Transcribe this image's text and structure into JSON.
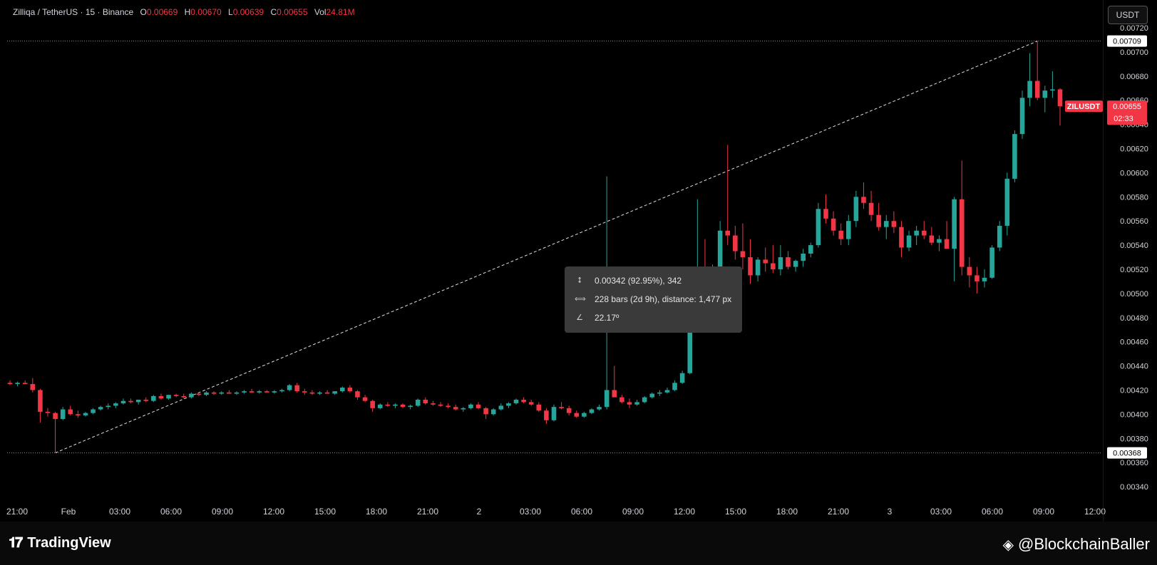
{
  "header": {
    "symbol": "Zilliqa / TetherUS · 15 · Binance",
    "o_label": "O",
    "o_value": "0.00669",
    "h_label": "H",
    "h_value": "0.00670",
    "l_label": "L",
    "l_value": "0.00639",
    "c_label": "C",
    "c_value": "0.00655",
    "vol_label": "Vol",
    "vol_value": "24.81M"
  },
  "currency_button": "USDT",
  "price_badge": {
    "symbol": "ZILUSDT",
    "price": "0.00655",
    "countdown": "02:33"
  },
  "high_marker": "0.00709",
  "low_marker": "0.00368",
  "measure_tooltip": {
    "price_change": "0.00342 (92.95%), 342",
    "bars": "228 bars (2d 9h), distance: 1,477 px",
    "angle": "22.17º"
  },
  "footer": {
    "brand": "TradingView",
    "credit": "@BlockchainBaller"
  },
  "colors": {
    "up": "#26a69a",
    "down": "#f23645",
    "background": "#000000",
    "grid_text": "#d1d4dc"
  },
  "chart_data": {
    "type": "candlestick",
    "title": "Zilliqa / TetherUS · 15 · Binance",
    "y_axis": {
      "ticks": [
        "0.00720",
        "0.00700",
        "0.00680",
        "0.00660",
        "0.00640",
        "0.00620",
        "0.00600",
        "0.00580",
        "0.00560",
        "0.00540",
        "0.00520",
        "0.00500",
        "0.00480",
        "0.00460",
        "0.00440",
        "0.00420",
        "0.00400",
        "0.00380",
        "0.00360",
        "0.00340"
      ],
      "range": [
        0.0033,
        0.00743
      ]
    },
    "x_axis": {
      "ticks": [
        "21:00",
        "Feb",
        "03:00",
        "06:00",
        "09:00",
        "12:00",
        "15:00",
        "18:00",
        "21:00",
        "2",
        "03:00",
        "06:00",
        "09:00",
        "12:00",
        "15:00",
        "18:00",
        "21:00",
        "3",
        "03:00",
        "06:00",
        "09:00",
        "12:00"
      ]
    },
    "candles": [
      [
        0.00426,
        0.00428,
        0.00424,
        0.00425
      ],
      [
        0.00425,
        0.00427,
        0.00423,
        0.00426
      ],
      [
        0.00426,
        0.00428,
        0.00425,
        0.00425
      ],
      [
        0.00425,
        0.0043,
        0.00418,
        0.0042
      ],
      [
        0.0042,
        0.00421,
        0.00393,
        0.00402
      ],
      [
        0.00402,
        0.00405,
        0.00398,
        0.00401
      ],
      [
        0.00401,
        0.00402,
        0.00368,
        0.00396
      ],
      [
        0.00396,
        0.00406,
        0.00395,
        0.00404
      ],
      [
        0.00404,
        0.00407,
        0.00399,
        0.004
      ],
      [
        0.004,
        0.00403,
        0.00397,
        0.00399
      ],
      [
        0.00399,
        0.00402,
        0.00398,
        0.00401
      ],
      [
        0.00401,
        0.00405,
        0.004,
        0.00404
      ],
      [
        0.00404,
        0.00407,
        0.00403,
        0.00406
      ],
      [
        0.00406,
        0.00409,
        0.00404,
        0.00407
      ],
      [
        0.00407,
        0.0041,
        0.00405,
        0.00409
      ],
      [
        0.00409,
        0.00413,
        0.00408,
        0.00411
      ],
      [
        0.00411,
        0.00413,
        0.00409,
        0.0041
      ],
      [
        0.0041,
        0.00412,
        0.00408,
        0.00412
      ],
      [
        0.00412,
        0.00414,
        0.0041,
        0.00411
      ],
      [
        0.00411,
        0.00416,
        0.0041,
        0.00415
      ],
      [
        0.00415,
        0.00417,
        0.00412,
        0.00413
      ],
      [
        0.00413,
        0.00416,
        0.00412,
        0.00416
      ],
      [
        0.00416,
        0.00417,
        0.00414,
        0.00415
      ],
      [
        0.00415,
        0.00417,
        0.00413,
        0.00414
      ],
      [
        0.00414,
        0.00418,
        0.00413,
        0.00417
      ],
      [
        0.00417,
        0.00418,
        0.00415,
        0.00416
      ],
      [
        0.00416,
        0.00419,
        0.00415,
        0.00418
      ],
      [
        0.00418,
        0.00419,
        0.00416,
        0.00417
      ],
      [
        0.00417,
        0.00419,
        0.00416,
        0.00418
      ],
      [
        0.00418,
        0.0042,
        0.00417,
        0.00417
      ],
      [
        0.00417,
        0.00419,
        0.00416,
        0.00418
      ],
      [
        0.00418,
        0.0042,
        0.00417,
        0.00419
      ],
      [
        0.00419,
        0.00421,
        0.00418,
        0.00418
      ],
      [
        0.00418,
        0.0042,
        0.00417,
        0.00419
      ],
      [
        0.00419,
        0.0042,
        0.00418,
        0.00418
      ],
      [
        0.00418,
        0.0042,
        0.00417,
        0.00419
      ],
      [
        0.00419,
        0.00421,
        0.00418,
        0.0042
      ],
      [
        0.0042,
        0.00425,
        0.00419,
        0.00424
      ],
      [
        0.00424,
        0.00426,
        0.00418,
        0.00419
      ],
      [
        0.00419,
        0.00421,
        0.00416,
        0.00418
      ],
      [
        0.00418,
        0.0042,
        0.00416,
        0.00417
      ],
      [
        0.00417,
        0.00419,
        0.00416,
        0.00418
      ],
      [
        0.00418,
        0.0042,
        0.00417,
        0.00417
      ],
      [
        0.00417,
        0.00419,
        0.00416,
        0.00419
      ],
      [
        0.00419,
        0.00423,
        0.00418,
        0.00422
      ],
      [
        0.00422,
        0.00424,
        0.00418,
        0.00419
      ],
      [
        0.00419,
        0.0042,
        0.00412,
        0.00414
      ],
      [
        0.00414,
        0.00416,
        0.0041,
        0.00411
      ],
      [
        0.00411,
        0.00412,
        0.00402,
        0.00405
      ],
      [
        0.00405,
        0.00409,
        0.00404,
        0.00408
      ],
      [
        0.00408,
        0.0041,
        0.00406,
        0.00407
      ],
      [
        0.00407,
        0.00409,
        0.00405,
        0.00408
      ],
      [
        0.00408,
        0.00409,
        0.00405,
        0.00406
      ],
      [
        0.00406,
        0.00408,
        0.00404,
        0.00407
      ],
      [
        0.00407,
        0.00413,
        0.00406,
        0.00412
      ],
      [
        0.00412,
        0.00414,
        0.00408,
        0.00409
      ],
      [
        0.00409,
        0.00411,
        0.00407,
        0.00408
      ],
      [
        0.00408,
        0.0041,
        0.00406,
        0.00407
      ],
      [
        0.00407,
        0.00409,
        0.00405,
        0.00406
      ],
      [
        0.00406,
        0.00408,
        0.00403,
        0.00404
      ],
      [
        0.00404,
        0.00406,
        0.00402,
        0.00405
      ],
      [
        0.00405,
        0.00409,
        0.00404,
        0.00408
      ],
      [
        0.00408,
        0.0041,
        0.00404,
        0.00405
      ],
      [
        0.00405,
        0.00406,
        0.00396,
        0.004
      ],
      [
        0.004,
        0.00405,
        0.00399,
        0.00404
      ],
      [
        0.00404,
        0.00409,
        0.00403,
        0.00407
      ],
      [
        0.00407,
        0.0041,
        0.00405,
        0.00409
      ],
      [
        0.00409,
        0.00413,
        0.00408,
        0.00412
      ],
      [
        0.00412,
        0.00414,
        0.00409,
        0.0041
      ],
      [
        0.0041,
        0.00412,
        0.00407,
        0.00408
      ],
      [
        0.00408,
        0.0041,
        0.00402,
        0.00403
      ],
      [
        0.00403,
        0.00405,
        0.00392,
        0.00395
      ],
      [
        0.00395,
        0.00408,
        0.00394,
        0.00406
      ],
      [
        0.00406,
        0.0041,
        0.00404,
        0.00405
      ],
      [
        0.00405,
        0.00407,
        0.00399,
        0.00401
      ],
      [
        0.00401,
        0.00403,
        0.00397,
        0.00398
      ],
      [
        0.00398,
        0.00402,
        0.00397,
        0.00401
      ],
      [
        0.00401,
        0.00405,
        0.004,
        0.00404
      ],
      [
        0.00404,
        0.00408,
        0.00403,
        0.00406
      ],
      [
        0.00406,
        0.00597,
        0.00404,
        0.0042
      ],
      [
        0.0042,
        0.0044,
        0.00415,
        0.00414
      ],
      [
        0.00414,
        0.00416,
        0.00409,
        0.0041
      ],
      [
        0.0041,
        0.00413,
        0.00405,
        0.00408
      ],
      [
        0.00408,
        0.00412,
        0.00407,
        0.0041
      ],
      [
        0.0041,
        0.00415,
        0.00409,
        0.00414
      ],
      [
        0.00414,
        0.00418,
        0.00413,
        0.00417
      ],
      [
        0.00417,
        0.0042,
        0.00415,
        0.00418
      ],
      [
        0.00418,
        0.00422,
        0.00417,
        0.0042
      ],
      [
        0.0042,
        0.00428,
        0.00419,
        0.00426
      ],
      [
        0.00426,
        0.00436,
        0.00425,
        0.00434
      ],
      [
        0.00434,
        0.00486,
        0.00433,
        0.00482
      ],
      [
        0.00482,
        0.00578,
        0.0048,
        0.00522
      ],
      [
        0.00522,
        0.00545,
        0.005,
        0.0051
      ],
      [
        0.0051,
        0.00524,
        0.00505,
        0.00518
      ],
      [
        0.00518,
        0.0056,
        0.00516,
        0.00552
      ],
      [
        0.00552,
        0.00623,
        0.0054,
        0.00548
      ],
      [
        0.00548,
        0.00556,
        0.00528,
        0.00535
      ],
      [
        0.00535,
        0.00558,
        0.0052,
        0.0053
      ],
      [
        0.0053,
        0.00545,
        0.00508,
        0.00515
      ],
      [
        0.00515,
        0.0053,
        0.0051,
        0.00528
      ],
      [
        0.00528,
        0.00538,
        0.00518,
        0.00525
      ],
      [
        0.00525,
        0.0054,
        0.00517,
        0.0052
      ],
      [
        0.0052,
        0.0054,
        0.00515,
        0.0053
      ],
      [
        0.0053,
        0.00535,
        0.0052,
        0.00522
      ],
      [
        0.00522,
        0.00528,
        0.00518,
        0.00527
      ],
      [
        0.00527,
        0.00537,
        0.00522,
        0.00533
      ],
      [
        0.00533,
        0.00542,
        0.0053,
        0.0054
      ],
      [
        0.0054,
        0.00575,
        0.00538,
        0.0057
      ],
      [
        0.0057,
        0.00582,
        0.00558,
        0.00562
      ],
      [
        0.00562,
        0.00568,
        0.00548,
        0.00552
      ],
      [
        0.00552,
        0.00558,
        0.0054,
        0.00545
      ],
      [
        0.00545,
        0.00565,
        0.0054,
        0.0056
      ],
      [
        0.0056,
        0.00585,
        0.00555,
        0.0058
      ],
      [
        0.0058,
        0.00592,
        0.0057,
        0.00575
      ],
      [
        0.00575,
        0.00585,
        0.0056,
        0.00565
      ],
      [
        0.00565,
        0.00575,
        0.00552,
        0.00555
      ],
      [
        0.00555,
        0.00565,
        0.00545,
        0.0056
      ],
      [
        0.0056,
        0.00568,
        0.0055,
        0.00555
      ],
      [
        0.00555,
        0.0056,
        0.0053,
        0.00538
      ],
      [
        0.00538,
        0.00552,
        0.00535,
        0.00548
      ],
      [
        0.00548,
        0.00556,
        0.0054,
        0.00552
      ],
      [
        0.00552,
        0.0056,
        0.00545,
        0.00548
      ],
      [
        0.00548,
        0.00555,
        0.0054,
        0.00542
      ],
      [
        0.00542,
        0.00548,
        0.00535,
        0.00545
      ],
      [
        0.00545,
        0.0056,
        0.0054,
        0.00537
      ],
      [
        0.00537,
        0.0058,
        0.0051,
        0.00578
      ],
      [
        0.00578,
        0.0061,
        0.00515,
        0.00522
      ],
      [
        0.00522,
        0.0053,
        0.00505,
        0.00515
      ],
      [
        0.00515,
        0.00522,
        0.005,
        0.0051
      ],
      [
        0.0051,
        0.0052,
        0.00505,
        0.00513
      ],
      [
        0.00513,
        0.0054,
        0.00512,
        0.00538
      ],
      [
        0.00538,
        0.0056,
        0.00535,
        0.00556
      ],
      [
        0.00556,
        0.006,
        0.00548,
        0.00595
      ],
      [
        0.00595,
        0.00635,
        0.00592,
        0.00632
      ],
      [
        0.00632,
        0.00668,
        0.00628,
        0.00662
      ],
      [
        0.00662,
        0.00699,
        0.00655,
        0.00676
      ],
      [
        0.00676,
        0.00709,
        0.0066,
        0.00662
      ],
      [
        0.00662,
        0.00672,
        0.0065,
        0.00668
      ],
      [
        0.00668,
        0.00684,
        0.00662,
        0.00669
      ],
      [
        0.00669,
        0.0067,
        0.00639,
        0.00655
      ]
    ]
  }
}
